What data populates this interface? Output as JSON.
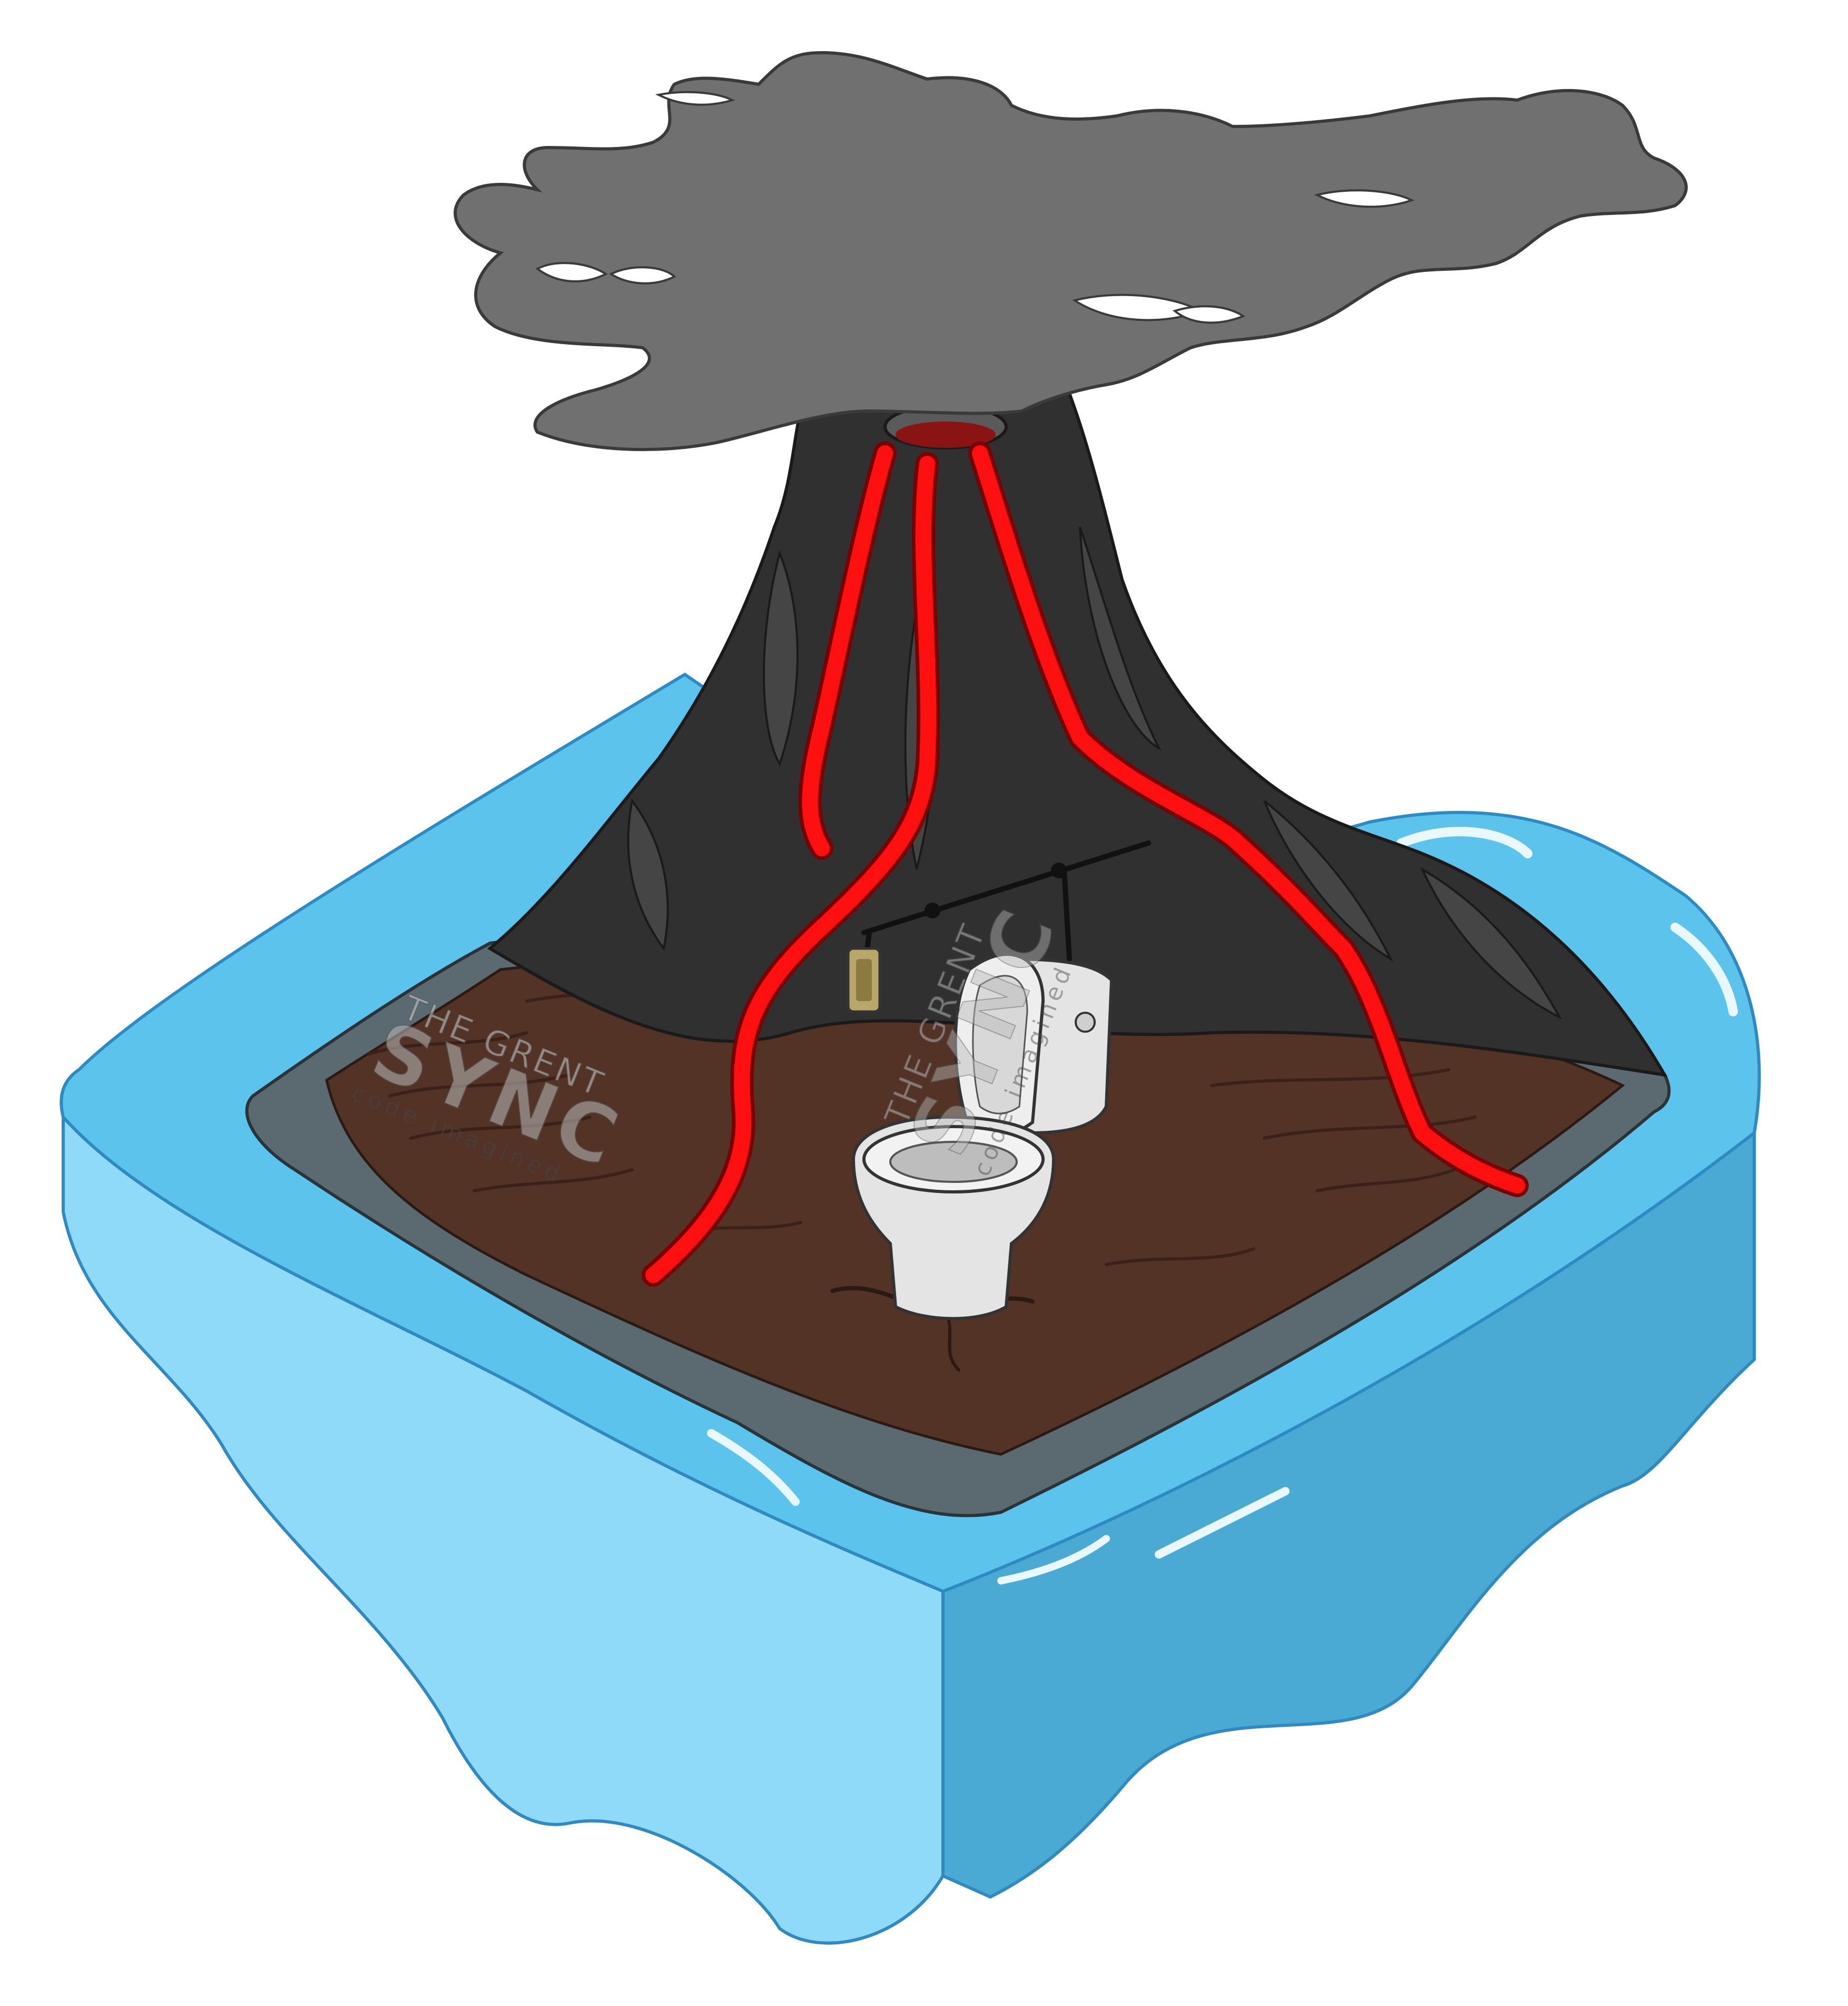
{
  "watermarks": [
    {
      "line1": "THE GRENT",
      "line2": "SYNC",
      "line3": "code imagined"
    },
    {
      "line1": "THE GRENT",
      "line2": "SYNC",
      "line3": "code imagined"
    }
  ],
  "colors": {
    "background": "#ffffff",
    "smoke": "#707070",
    "volcano": "#303030",
    "lava": "#ff1010",
    "soil": "#523325",
    "water_top": "#5bc3ec",
    "water_front_left": "#8fd9f9",
    "water_front_right": "#4aaad3",
    "toilet": "#e4e4e4"
  }
}
